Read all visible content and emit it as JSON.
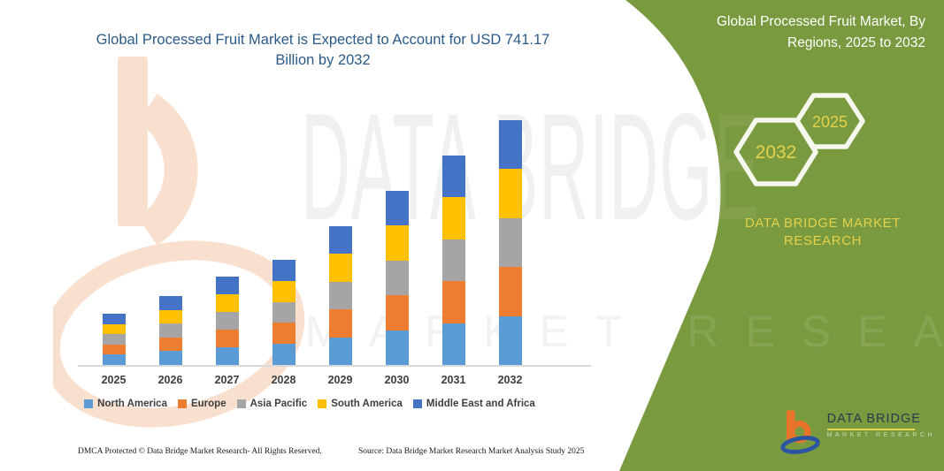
{
  "chart_data": {
    "type": "bar",
    "stacked": true,
    "title": "Global Processed Fruit Market is Expected to Account for USD 741.17 Billion by 2032",
    "unit": "USD Billion",
    "categories": [
      "2025",
      "2026",
      "2027",
      "2028",
      "2029",
      "2030",
      "2031",
      "2032"
    ],
    "series": [
      {
        "name": "North America",
        "color": "#5B9BD5",
        "values": [
          31.0,
          41.8,
          53.5,
          63.7,
          84.0,
          105.5,
          126.8,
          148.2
        ]
      },
      {
        "name": "Europe",
        "color": "#ED7D31",
        "values": [
          31.0,
          41.8,
          53.5,
          63.7,
          84.0,
          105.5,
          126.8,
          148.2
        ]
      },
      {
        "name": "Asia Pacific",
        "color": "#A5A5A5",
        "values": [
          31.0,
          41.8,
          53.5,
          63.7,
          84.0,
          105.5,
          126.8,
          148.2
        ]
      },
      {
        "name": "South America",
        "color": "#FFC000",
        "values": [
          31.0,
          41.8,
          53.5,
          63.7,
          84.0,
          105.5,
          126.8,
          148.2
        ]
      },
      {
        "name": "Middle East and Africa",
        "color": "#4472C4",
        "values": [
          31.0,
          41.8,
          53.5,
          63.7,
          84.0,
          105.5,
          126.8,
          148.2
        ]
      }
    ],
    "totals": [
      155.0,
      209.0,
      267.5,
      318.5,
      420.0,
      527.5,
      634.0,
      741.17
    ],
    "values_are_estimates": true,
    "legend_position": "bottom",
    "y_axis_visible": false,
    "x_axis_line": true
  },
  "right_panel": {
    "title": "Global Processed Fruit Market, By Regions, 2025 to 2032",
    "badge_back": "2032",
    "badge_front": "2025",
    "brand_line": "DATA BRIDGE MARKET RESEARCH",
    "logo_title": "DATA BRIDGE",
    "logo_subtitle": "MARKET RESEARCH",
    "panel_color": "#7A9A40",
    "accent_yellow": "#E3D14A"
  },
  "footer": {
    "dmca": "DMCA Protected © Data Bridge Market Research-  All Rights Reserved.",
    "source": "Source: Data Bridge Market Research  Market Analysis Study 2025"
  },
  "watermark": {
    "big_text": "DATA BRIDGE",
    "spaced_text": "MARKET RESEARCH"
  }
}
